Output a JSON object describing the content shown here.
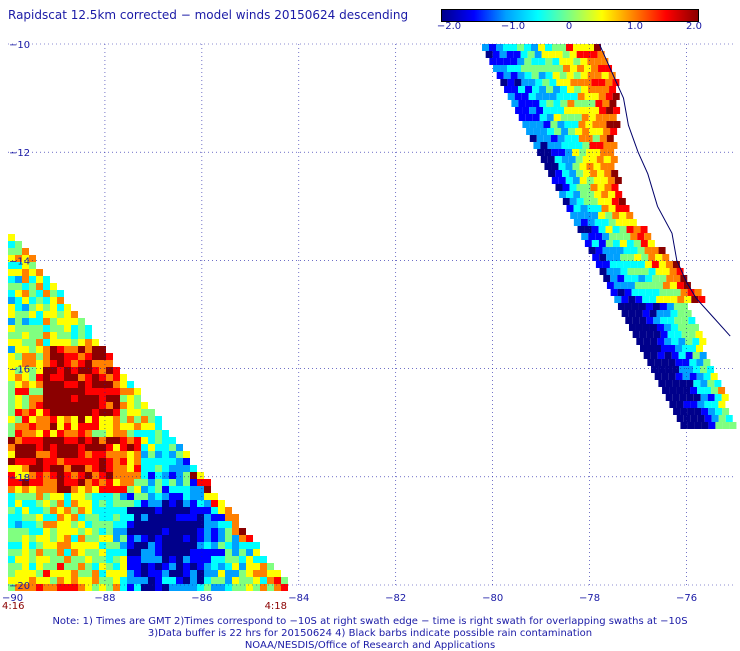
{
  "title": "Rapidscat 12.5km corrected − model winds 20150624 descending",
  "colorbar": {
    "labels": [
      "−2.0",
      "−1.0",
      "0",
      "1.0",
      "2.0"
    ],
    "values": [
      -2.0,
      -1.0,
      0,
      1.0,
      2.0
    ],
    "colors": [
      "#00008b",
      "#0000ff",
      "#00a0ff",
      "#00ffff",
      "#80ff80",
      "#ffff00",
      "#ff8000",
      "#ff0000",
      "#8b0000"
    ]
  },
  "map": {
    "lon_range": [
      -90,
      -75
    ],
    "lat_range": [
      -20,
      -10
    ],
    "lon_ticks": [
      {
        "value": -88,
        "label": "−88"
      },
      {
        "value": -86,
        "label": "−86"
      },
      {
        "value": -84,
        "label": "−84"
      },
      {
        "value": -82,
        "label": "−82"
      },
      {
        "value": -80,
        "label": "−80"
      },
      {
        "value": -78,
        "label": "−78"
      },
      {
        "value": -76,
        "label": "−76"
      }
    ],
    "corner_lon_label": "−90",
    "lat_ticks": [
      {
        "value": -10,
        "label": "−10"
      },
      {
        "value": -12,
        "label": "−12"
      },
      {
        "value": -14,
        "label": "−14"
      },
      {
        "value": -16,
        "label": "−16"
      },
      {
        "value": -18,
        "label": "−18"
      },
      {
        "value": -20,
        "label": "−20"
      }
    ],
    "time_labels": [
      {
        "lon": -90,
        "text": "4:16"
      },
      {
        "lon": -84.5,
        "text": "4:18"
      }
    ],
    "grid": "dotted",
    "coastline": [
      [
        -77.8,
        -10
      ],
      [
        -77.5,
        -10.6
      ],
      [
        -77.3,
        -11.0
      ],
      [
        -77.2,
        -11.5
      ],
      [
        -77.0,
        -12.0
      ],
      [
        -76.8,
        -12.4
      ],
      [
        -76.6,
        -13.0
      ],
      [
        -76.3,
        -13.5
      ],
      [
        -76.2,
        -14.0
      ],
      [
        -76.0,
        -14.4
      ],
      [
        -75.8,
        -14.7
      ],
      [
        -75.5,
        -15.0
      ],
      [
        -75.1,
        -15.4
      ]
    ]
  },
  "notes": [
    "Note: 1) Times are GMT 2)Times correspond to −10S at right swath edge − time is right swath for overlapping swaths at −10S",
    "3)Data buffer is 22 hrs for 20150624 4) Black barbs indicate possible rain contamination",
    "NOAA/NESDIS/Office of Research and Applications"
  ]
}
